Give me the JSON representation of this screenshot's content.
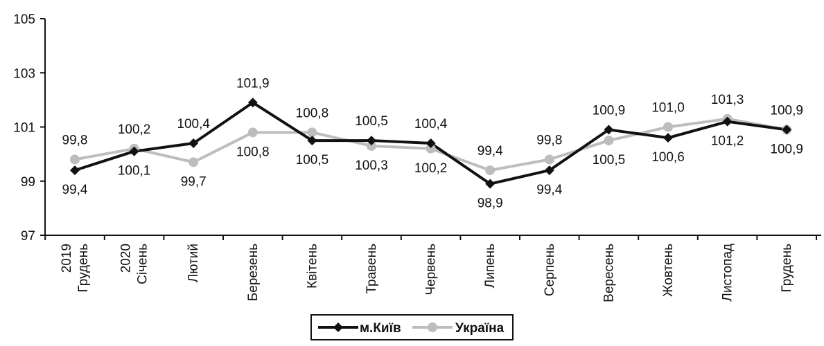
{
  "chart_data": {
    "type": "line",
    "categories": [
      [
        "2019",
        "Грудень"
      ],
      [
        "2020",
        "Січень"
      ],
      [
        "Лютий"
      ],
      [
        "Березень"
      ],
      [
        "Квітень"
      ],
      [
        "Травень"
      ],
      [
        "Червень"
      ],
      [
        "Липень"
      ],
      [
        "Серпень"
      ],
      [
        "Вересень"
      ],
      [
        "Жовтень"
      ],
      [
        "Листопад"
      ],
      [
        "Грудень"
      ]
    ],
    "series": [
      {
        "name": "м.Київ",
        "color": "#111111",
        "marker": "diamond",
        "values": [
          99.4,
          100.1,
          100.4,
          101.9,
          100.5,
          100.5,
          100.4,
          98.9,
          99.4,
          100.9,
          100.6,
          101.2,
          100.9
        ],
        "labels": [
          "99,4",
          "100,1",
          "100,4",
          "101,9",
          "100,5",
          "100,5",
          "100,4",
          "98,9",
          "99,4",
          "100,9",
          "100,6",
          "101,2",
          "100,9"
        ]
      },
      {
        "name": "Україна",
        "color": "#bdbdbd",
        "marker": "circle",
        "values": [
          99.8,
          100.2,
          99.7,
          100.8,
          100.8,
          100.3,
          100.2,
          99.4,
          99.8,
          100.5,
          101.0,
          101.3,
          100.9
        ],
        "labels": [
          "99,8",
          "100,2",
          "99,7",
          "100,8",
          "100,8",
          "100,3",
          "100,2",
          "99,4",
          "99,8",
          "100,5",
          "101,0",
          "101,3",
          "100,9"
        ]
      }
    ],
    "yticks": [
      97,
      99,
      101,
      103,
      105
    ],
    "ytick_labels": [
      "97",
      "99",
      "101",
      "103",
      "105"
    ],
    "ylim": [
      97,
      105
    ],
    "grid": false,
    "legend": "bottom-center"
  }
}
